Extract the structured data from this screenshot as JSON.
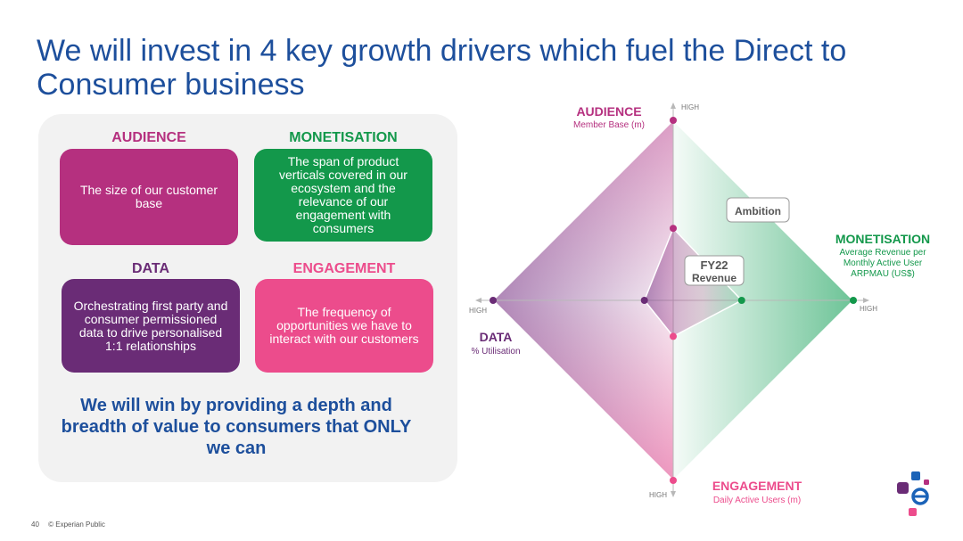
{
  "slide": {
    "title": "We will invest in 4 key growth drivers which fuel the Direct to Consumer business"
  },
  "panel": {
    "audience": {
      "heading": "AUDIENCE",
      "text": "The size of our customer base"
    },
    "monetisation": {
      "heading": "MONETISATION",
      "text": "The span of product verticals covered in our ecosystem and the relevance of our engagement with consumers"
    },
    "data": {
      "heading": "DATA",
      "text": "Orchestrating first party and consumer permissioned data to drive personalised 1:1 relationships"
    },
    "engagement": {
      "heading": "ENGAGEMENT",
      "text": "The frequency of opportunities we have to interact with our customers"
    },
    "win_statement": "We will win by providing a depth and breadth of value to consumers that ONLY we can"
  },
  "radar": {
    "audience": {
      "label": "AUDIENCE",
      "sub": "Member Base (m)",
      "high": "HIGH"
    },
    "monetisation": {
      "label": "MONETISATION",
      "sub_line1": "Average Revenue per",
      "sub_line2": "Monthly Active User",
      "sub_line3": "ARPMAU (US$)",
      "high": "HIGH"
    },
    "data": {
      "label": "DATA",
      "sub": "% Utilisation",
      "high": "HIGH"
    },
    "engagement": {
      "label": "ENGAGEMENT",
      "sub": "Daily Active Users (m)",
      "high": "HIGH"
    },
    "ambition_label": "Ambition",
    "fy22_line1": "FY22",
    "fy22_line2": "Revenue"
  },
  "chart_data": {
    "type": "radar",
    "axes": [
      "AUDIENCE",
      "MONETISATION",
      "ENGAGEMENT",
      "DATA"
    ],
    "series": [
      {
        "name": "Ambition",
        "values": [
          1.0,
          1.0,
          1.0,
          1.0
        ]
      },
      {
        "name": "FY22 Revenue",
        "values": [
          0.4,
          0.38,
          0.2,
          0.16
        ]
      }
    ],
    "range": [
      0,
      1
    ]
  },
  "footer": {
    "page_number": "40",
    "classification": "© Experian Public"
  },
  "colors": {
    "title_blue": "#1d4f9c",
    "audience": "#b5307f",
    "monetisation": "#13984b",
    "data": "#6a2c76",
    "engagement": "#ec4c8c"
  }
}
